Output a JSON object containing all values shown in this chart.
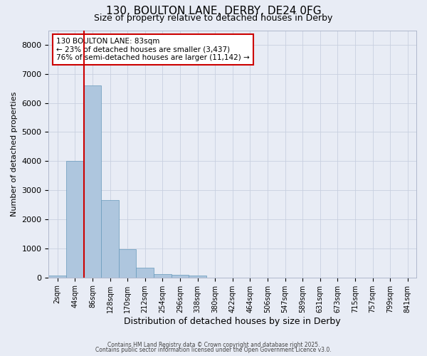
{
  "title_line1": "130, BOULTON LANE, DERBY, DE24 0FG",
  "title_line2": "Size of property relative to detached houses in Derby",
  "xlabel": "Distribution of detached houses by size in Derby",
  "ylabel": "Number of detached properties",
  "categories": [
    "2sqm",
    "44sqm",
    "86sqm",
    "128sqm",
    "170sqm",
    "212sqm",
    "254sqm",
    "296sqm",
    "338sqm",
    "380sqm",
    "422sqm",
    "464sqm",
    "506sqm",
    "547sqm",
    "589sqm",
    "631sqm",
    "673sqm",
    "715sqm",
    "757sqm",
    "799sqm",
    "841sqm"
  ],
  "values": [
    60,
    4020,
    6600,
    2650,
    980,
    330,
    120,
    80,
    55,
    0,
    0,
    0,
    0,
    0,
    0,
    0,
    0,
    0,
    0,
    0,
    0
  ],
  "bar_color": "#aec6de",
  "bar_edge_color": "#6699bb",
  "vline_color": "#cc0000",
  "annotation_text_line1": "130 BOULTON LANE: 83sqm",
  "annotation_text_line2": "← 23% of detached houses are smaller (3,437)",
  "annotation_text_line3": "76% of semi-detached houses are larger (11,142) →",
  "annotation_box_color": "#cc0000",
  "bg_color": "#e8ecf5",
  "footer_line1": "Contains HM Land Registry data © Crown copyright and database right 2025.",
  "footer_line2": "Contains public sector information licensed under the Open Government Licence v3.0.",
  "ylim": [
    0,
    8500
  ],
  "yticks": [
    0,
    1000,
    2000,
    3000,
    4000,
    5000,
    6000,
    7000,
    8000
  ]
}
